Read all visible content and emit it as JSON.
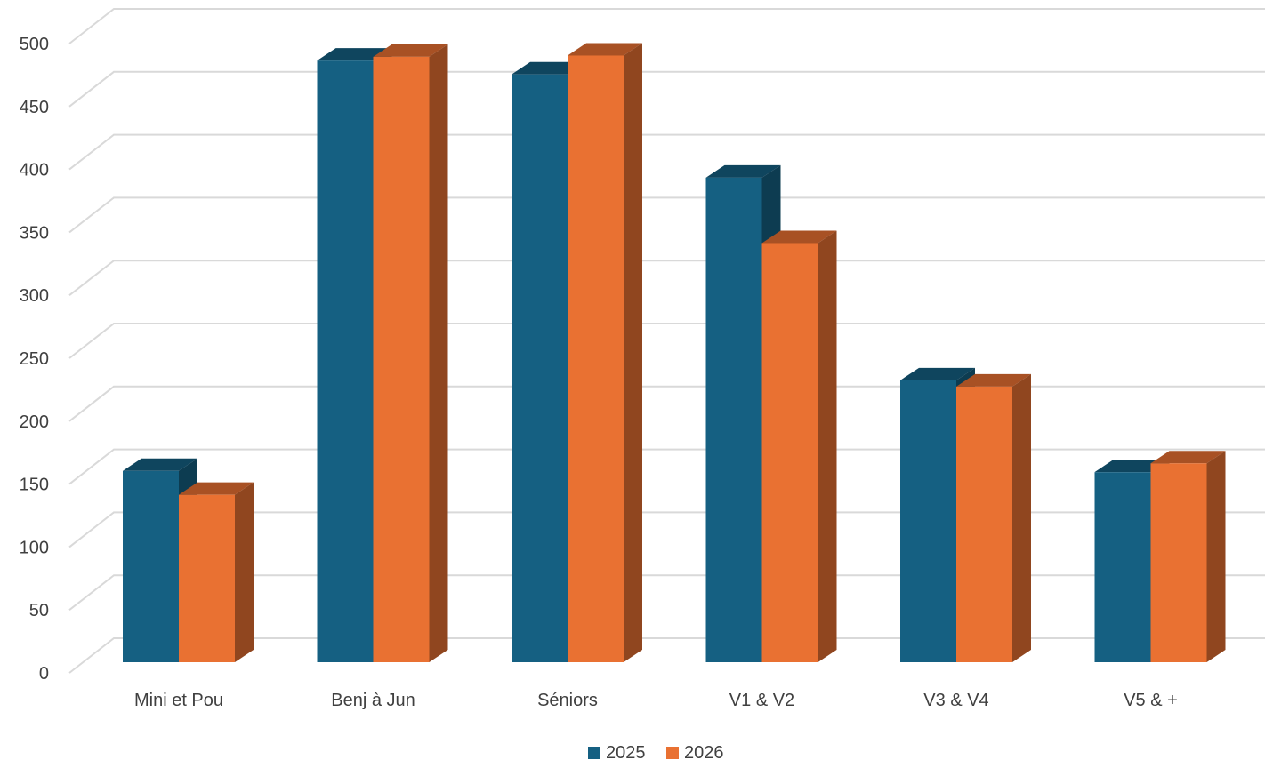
{
  "chart_data": {
    "type": "bar",
    "title": "",
    "xlabel": "",
    "ylabel": "",
    "categories": [
      "Mini et Pou",
      "Benj à Jun",
      "Séniors",
      "V1 & V2",
      "V3 & V4",
      "V5 & +"
    ],
    "series": [
      {
        "name": "2025",
        "values": [
          152,
          478,
          467,
          385,
          224,
          151
        ],
        "color": "#156082"
      },
      {
        "name": "2026",
        "values": [
          133,
          481,
          482,
          333,
          219,
          158
        ],
        "color": "#E97132"
      }
    ],
    "ylim": [
      0,
      500
    ],
    "yticks": [
      0,
      50,
      100,
      150,
      200,
      250,
      300,
      350,
      400,
      450,
      500
    ],
    "grid": true,
    "legend": "bottom",
    "style": "3d-clustered-column"
  }
}
